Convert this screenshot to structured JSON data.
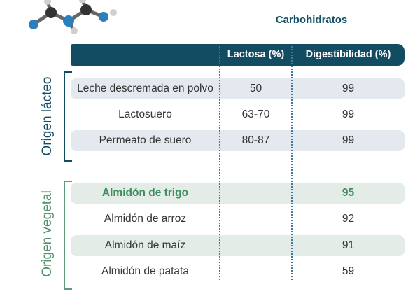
{
  "title": "Carbohidratos",
  "header": {
    "lactosa": "Lactosa (%)",
    "digestibilidad": "Digestibilidad (%)"
  },
  "groups": [
    {
      "label": "Origen lácteo",
      "color": "#124c63"
    },
    {
      "label": "Origen vegetal",
      "color": "#4f8f6c"
    }
  ],
  "rows": [
    {
      "name": "Leche descremada en polvo",
      "lactosa": "50",
      "digestibilidad": "99"
    },
    {
      "name": "Lactosuero",
      "lactosa": "63-70",
      "digestibilidad": "99"
    },
    {
      "name": "Permeato de suero",
      "lactosa": "80-87",
      "digestibilidad": "99"
    },
    {
      "name": "Almidón de trigo",
      "lactosa": "",
      "digestibilidad": "95"
    },
    {
      "name": "Almidón de arroz",
      "lactosa": "",
      "digestibilidad": "92"
    },
    {
      "name": "Almidón de maíz",
      "lactosa": "",
      "digestibilidad": "91"
    },
    {
      "name": "Almidón de patata",
      "lactosa": "",
      "digestibilidad": "59"
    }
  ],
  "colors": {
    "header": "#124c63",
    "highlight": "#3f8d5f"
  },
  "icon": "molecule-icon"
}
